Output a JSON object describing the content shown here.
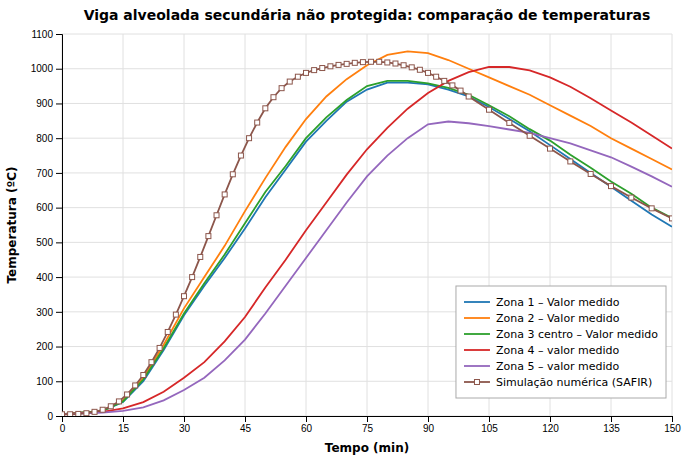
{
  "chart_data": {
    "type": "line",
    "title": "Viga alveolada secundária não protegida: comparação de temperaturas",
    "x_label": "Tempo (min)",
    "y_label": "Temperatura (ºC)",
    "xlim": [
      0,
      150
    ],
    "ylim": [
      0,
      1100
    ],
    "xticks": [
      0,
      15,
      30,
      45,
      60,
      75,
      90,
      105,
      120,
      135,
      150
    ],
    "yticks": [
      0,
      100,
      200,
      300,
      400,
      500,
      600,
      700,
      800,
      900,
      1000,
      1100
    ],
    "grid": true,
    "legend": "lower right",
    "series": [
      {
        "name": "Zona 1 – Valor medido",
        "x": [
          0,
          10,
          15,
          20,
          25,
          30,
          35,
          40,
          45,
          50,
          55,
          60,
          65,
          70,
          75,
          80,
          85,
          90,
          95,
          100,
          105,
          110,
          115,
          120,
          125,
          130,
          135,
          140,
          145,
          150
        ],
        "values": [
          5,
          15,
          40,
          100,
          190,
          290,
          375,
          455,
          540,
          630,
          710,
          790,
          850,
          905,
          940,
          960,
          960,
          955,
          940,
          920,
          890,
          855,
          820,
          780,
          740,
          700,
          660,
          620,
          580,
          545
        ]
      },
      {
        "name": "Zona 2 – Valor medido",
        "x": [
          0,
          10,
          15,
          20,
          25,
          30,
          35,
          40,
          45,
          50,
          55,
          60,
          65,
          70,
          75,
          80,
          85,
          90,
          95,
          100,
          105,
          110,
          115,
          120,
          125,
          130,
          135,
          140,
          145,
          150
        ],
        "values": [
          5,
          15,
          45,
          110,
          205,
          310,
          400,
          490,
          590,
          685,
          775,
          855,
          920,
          970,
          1010,
          1040,
          1050,
          1045,
          1025,
          1000,
          975,
          950,
          925,
          895,
          865,
          835,
          800,
          770,
          740,
          710
        ]
      },
      {
        "name": "Zona 3 centro – Valor medido",
        "x": [
          0,
          10,
          15,
          20,
          25,
          30,
          35,
          40,
          45,
          50,
          55,
          60,
          65,
          70,
          75,
          80,
          85,
          90,
          95,
          100,
          105,
          110,
          115,
          120,
          125,
          130,
          135,
          140,
          145,
          150
        ],
        "values": [
          5,
          15,
          42,
          105,
          195,
          295,
          382,
          465,
          555,
          645,
          720,
          800,
          860,
          910,
          950,
          965,
          965,
          958,
          945,
          925,
          895,
          863,
          826,
          793,
          752,
          715,
          675,
          640,
          600,
          570
        ]
      },
      {
        "name": "Zona 4 – valor medido",
        "x": [
          0,
          10,
          15,
          20,
          25,
          30,
          35,
          40,
          45,
          50,
          55,
          60,
          65,
          70,
          75,
          80,
          85,
          90,
          95,
          100,
          105,
          110,
          115,
          120,
          125,
          130,
          135,
          140,
          145,
          150
        ],
        "values": [
          5,
          12,
          22,
          40,
          70,
          110,
          155,
          215,
          285,
          370,
          450,
          535,
          615,
          695,
          768,
          830,
          885,
          930,
          965,
          990,
          1005,
          1005,
          995,
          975,
          948,
          915,
          880,
          845,
          808,
          770
        ]
      },
      {
        "name": "Zona 5 – valor medido",
        "x": [
          0,
          10,
          15,
          20,
          25,
          30,
          35,
          40,
          45,
          50,
          55,
          60,
          65,
          70,
          75,
          80,
          85,
          90,
          95,
          100,
          105,
          110,
          115,
          120,
          125,
          130,
          135,
          140,
          145,
          150
        ],
        "values": [
          5,
          10,
          15,
          25,
          45,
          75,
          110,
          160,
          220,
          295,
          375,
          455,
          535,
          615,
          690,
          750,
          800,
          840,
          848,
          843,
          835,
          825,
          815,
          800,
          785,
          765,
          745,
          718,
          690,
          660
        ]
      },
      {
        "name": "Simulação numérica (SAFIR)",
        "marker": "square",
        "x": [
          0,
          2,
          4,
          6,
          8,
          10,
          12,
          14,
          16,
          18,
          20,
          22,
          24,
          26,
          28,
          30,
          32,
          34,
          36,
          38,
          40,
          42,
          44,
          46,
          48,
          50,
          52,
          54,
          56,
          58,
          60,
          62,
          64,
          66,
          68,
          70,
          72,
          74,
          76,
          78,
          80,
          82,
          84,
          86,
          88,
          90,
          92,
          94,
          96,
          98,
          100,
          105,
          110,
          115,
          120,
          125,
          130,
          135,
          140,
          145,
          150
        ],
        "values": [
          5,
          5,
          6,
          8,
          12,
          18,
          28,
          42,
          62,
          88,
          118,
          155,
          196,
          242,
          292,
          345,
          400,
          458,
          518,
          578,
          638,
          696,
          750,
          800,
          845,
          886,
          918,
          944,
          963,
          977,
          988,
          996,
          1002,
          1007,
          1011,
          1014,
          1017,
          1019,
          1020,
          1020,
          1018,
          1015,
          1010,
          1004,
          997,
          988,
          977,
          965,
          952,
          937,
          920,
          882,
          844,
          807,
          770,
          733,
          697,
          662,
          629,
          598,
          569
        ]
      }
    ]
  }
}
